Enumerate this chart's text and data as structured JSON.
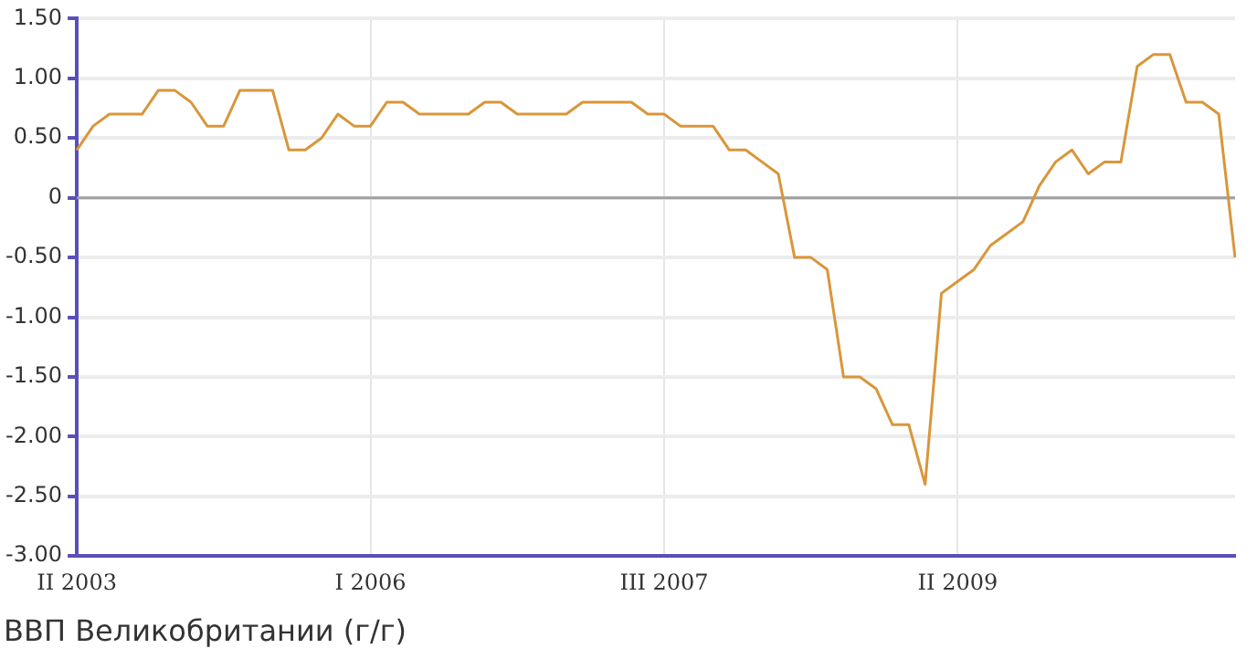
{
  "chart_data": {
    "type": "line",
    "title": "ВВП Великобритании (г/г)",
    "categories": [
      "II 2003",
      null,
      null,
      null,
      null,
      null,
      null,
      null,
      null,
      null,
      null,
      null,
      null,
      null,
      null,
      null,
      null,
      null,
      "I 2006",
      null,
      null,
      null,
      null,
      null,
      null,
      null,
      null,
      null,
      null,
      null,
      null,
      null,
      null,
      null,
      null,
      null,
      "III 2007",
      null,
      null,
      null,
      null,
      null,
      null,
      null,
      null,
      null,
      null,
      null,
      null,
      null,
      null,
      null,
      null,
      null,
      "II 2009",
      null,
      null,
      null,
      null,
      null,
      null,
      null,
      null,
      null,
      null,
      null,
      null,
      null,
      null,
      null,
      null,
      null
    ],
    "series": [
      {
        "color": "#d9963a",
        "values": [
          0.4,
          0.6,
          0.7,
          0.7,
          0.7,
          0.9,
          0.9,
          0.8,
          0.6,
          0.6,
          0.9,
          0.9,
          0.9,
          0.4,
          0.4,
          0.5,
          0.7,
          0.6,
          0.6,
          0.8,
          0.8,
          0.7,
          0.7,
          0.7,
          0.7,
          0.8,
          0.8,
          0.7,
          0.7,
          0.7,
          0.7,
          0.8,
          0.8,
          0.8,
          0.8,
          0.7,
          0.7,
          0.6,
          0.6,
          0.6,
          0.4,
          0.4,
          0.3,
          0.2,
          -0.5,
          -0.5,
          -0.6,
          -1.5,
          -1.5,
          -1.6,
          -1.9,
          -1.9,
          -2.4,
          -0.8,
          -0.7,
          -0.6,
          -0.4,
          -0.3,
          -0.2,
          0.1,
          0.3,
          0.4,
          0.2,
          0.3,
          0.3,
          1.1,
          1.2,
          1.2,
          0.8,
          0.8,
          0.7,
          -0.5
        ]
      }
    ],
    "ylim": [
      -3,
      1.5
    ],
    "yticks": [
      {
        "value": 1.5,
        "label": "1.50"
      },
      {
        "value": 1,
        "label": "1.00"
      },
      {
        "value": 0.5,
        "label": "0.50"
      },
      0,
      {
        "value": -0.5,
        "label": "-0.50"
      },
      {
        "value": -1,
        "label": "-1.00"
      },
      {
        "value": -1.5,
        "label": "-1.50"
      },
      {
        "value": -2,
        "label": "-2.00"
      },
      {
        "value": -2.5,
        "label": "-2.50"
      },
      {
        "value": -3,
        "label": "-3.00"
      }
    ],
    "ref_lines": [
      {
        "axis": "y",
        "value": 0,
        "color": "#a0a0a0"
      }
    ],
    "grid": true,
    "legend": false,
    "marker": "none",
    "line_style": "solid"
  }
}
